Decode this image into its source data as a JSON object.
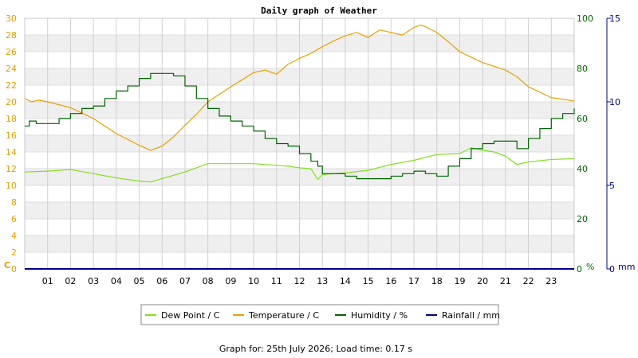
{
  "chart_data": {
    "type": "line",
    "title": "Daily graph of Weather",
    "x_ticks": [
      "01",
      "02",
      "03",
      "04",
      "05",
      "06",
      "07",
      "08",
      "09",
      "10",
      "11",
      "12",
      "13",
      "14",
      "15",
      "16",
      "17",
      "18",
      "19",
      "20",
      "21",
      "22",
      "23"
    ],
    "xlim": [
      0,
      24
    ],
    "axes": {
      "left": {
        "unit": "C",
        "min": 0,
        "max": 30,
        "ticks": [
          0,
          2,
          4,
          6,
          8,
          10,
          12,
          14,
          16,
          18,
          20,
          22,
          24,
          26,
          28,
          30
        ],
        "color": "#e0a000"
      },
      "right1": {
        "unit": "%",
        "min": 0,
        "max": 100,
        "ticks": [
          0,
          20,
          40,
          60,
          80,
          100
        ],
        "color": "#006400"
      },
      "right2": {
        "unit": "mm",
        "min": 0,
        "max": 15,
        "ticks": [
          0,
          5,
          10,
          15
        ],
        "color": "#00008b"
      }
    },
    "grid": true,
    "legend_position": "bottom",
    "series": [
      {
        "name": "Dew Point / C",
        "axis": "left",
        "color": "#80e020",
        "x": [
          0,
          1,
          2,
          3,
          4,
          5,
          5.5,
          6,
          7,
          8,
          9,
          10,
          11,
          11.5,
          12,
          12.5,
          12.8,
          13,
          14,
          15,
          16,
          17,
          18,
          19,
          19.5,
          20,
          20.5,
          21,
          21.5,
          22,
          23,
          24
        ],
        "y": [
          11.6,
          11.7,
          11.9,
          11.4,
          10.9,
          10.5,
          10.4,
          10.8,
          11.6,
          12.6,
          12.6,
          12.6,
          12.4,
          12.3,
          12.1,
          12.0,
          10.7,
          11.3,
          11.5,
          11.8,
          12.5,
          13.0,
          13.7,
          13.8,
          14.5,
          14.2,
          14.0,
          13.5,
          12.5,
          12.8,
          13.1,
          13.2
        ]
      },
      {
        "name": "Temperature / C",
        "axis": "left",
        "color": "#e8a000",
        "x": [
          0,
          0.3,
          0.6,
          1,
          2,
          3,
          4,
          5,
          5.5,
          6,
          6.5,
          7,
          7.5,
          8,
          9,
          10,
          10.5,
          11,
          11.5,
          12,
          12.5,
          13,
          13.5,
          14,
          14.5,
          15,
          15.5,
          16,
          16.5,
          17,
          17.3,
          17.5,
          18,
          18.5,
          19,
          20,
          21,
          21.5,
          22,
          23,
          24
        ],
        "y": [
          20.4,
          20.0,
          20.2,
          20.0,
          19.3,
          18.0,
          16.2,
          14.8,
          14.2,
          14.7,
          15.8,
          17.2,
          18.5,
          20.0,
          21.8,
          23.5,
          23.8,
          23.3,
          24.5,
          25.2,
          25.8,
          26.6,
          27.3,
          27.9,
          28.3,
          27.7,
          28.6,
          28.3,
          28.0,
          28.9,
          29.2,
          29.0,
          28.3,
          27.2,
          26.0,
          24.7,
          23.8,
          23.0,
          21.8,
          20.5,
          20.1
        ]
      },
      {
        "name": "Humidity / %",
        "axis": "right1",
        "color": "#006400",
        "x": [
          0,
          0.2,
          0.5,
          1,
          1.5,
          2,
          2.5,
          3,
          3.5,
          4,
          4.5,
          5,
          5.5,
          6,
          6.5,
          7,
          7.5,
          8,
          8.5,
          9,
          9.5,
          10,
          10.5,
          11,
          11.5,
          12,
          12.5,
          12.8,
          13,
          13.5,
          14,
          14.5,
          15,
          15.5,
          16,
          16.5,
          17,
          17.5,
          18,
          18.5,
          19,
          19.5,
          20,
          20.5,
          21,
          21.5,
          22,
          22.5,
          23,
          23.5,
          24
        ],
        "y": [
          57,
          59,
          58,
          58,
          60,
          62,
          64,
          65,
          68,
          71,
          73,
          76,
          78,
          78,
          77,
          73,
          68,
          64,
          61,
          59,
          57,
          55,
          52,
          50,
          49,
          46,
          43,
          41,
          38,
          38,
          37,
          36,
          36,
          36,
          37,
          38,
          39,
          38,
          37,
          41,
          44,
          48,
          50,
          51,
          51,
          48,
          52,
          56,
          60,
          62,
          64
        ]
      },
      {
        "name": "Rainfall / mm",
        "axis": "right2",
        "color": "#00008b",
        "x": [
          0,
          24
        ],
        "y": [
          0,
          0
        ]
      }
    ],
    "footer": "Graph for: 25th July 2026; Load time: 0.17 s"
  }
}
